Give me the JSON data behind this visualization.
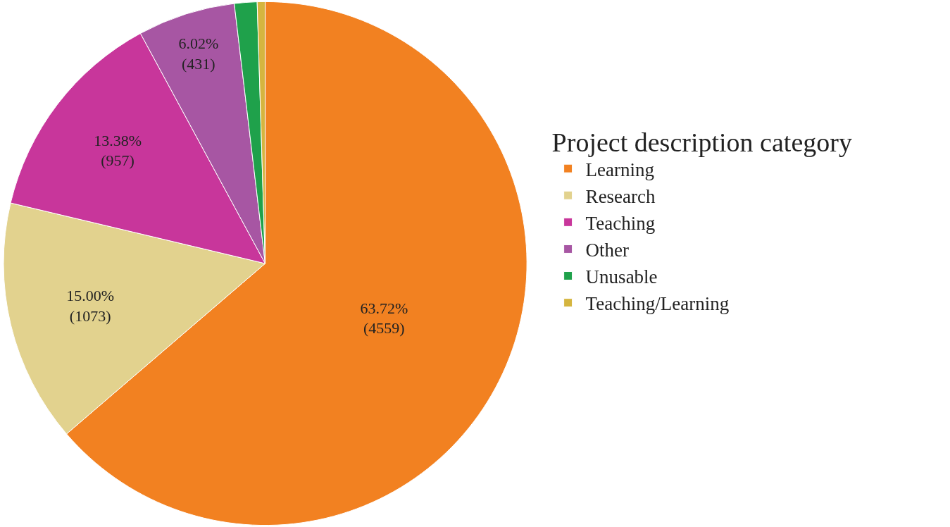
{
  "chart_data": {
    "type": "pie",
    "legend_title": "Project description category",
    "legend": "right",
    "categories": [
      "Learning",
      "Research",
      "Teaching",
      "Other",
      "Unusable",
      "Teaching/Learning"
    ],
    "values": [
      4559,
      1073,
      957,
      431,
      100,
      35
    ],
    "colors": [
      "#f28121",
      "#e2d28e",
      "#c8369b",
      "#a756a3",
      "#1fa14b",
      "#d5b53f"
    ],
    "value_labels": [
      "63.72%\n(4559)",
      "15.00%\n(1073)",
      "13.38%\n(957)",
      "6.02%\n(431)",
      null,
      null
    ]
  }
}
